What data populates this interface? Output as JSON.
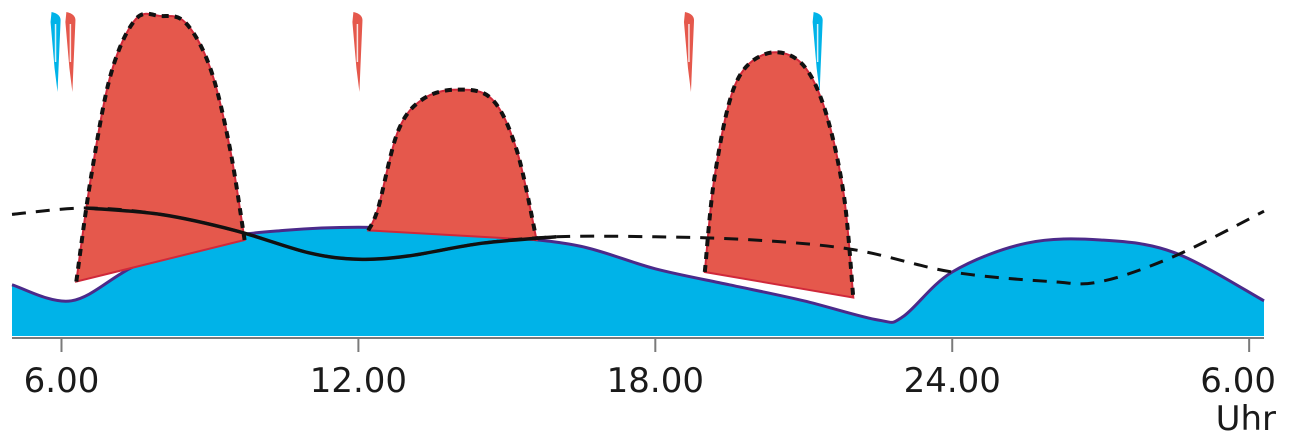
{
  "chart_data": {
    "type": "area",
    "title": "",
    "xlabel": "Uhr",
    "ylabel": "",
    "x_range_hours": [
      5,
      30.3
    ],
    "y_range": [
      0,
      1
    ],
    "grid": false,
    "x_ticks": [
      {
        "hour": 6,
        "label": "6.00"
      },
      {
        "hour": 12,
        "label": "12.00"
      },
      {
        "hour": 18,
        "label": "18.00"
      },
      {
        "hour": 24,
        "label": "24.00"
      },
      {
        "hour": 30,
        "label": "6.00"
      }
    ],
    "series": [
      {
        "kind": "area",
        "color": "#00b3e8",
        "stroke": "#4b2a8a",
        "points": [
          [
            5.0,
            0.16
          ],
          [
            6.2,
            0.11
          ],
          [
            7.5,
            0.22
          ],
          [
            9.0,
            0.3
          ],
          [
            10.5,
            0.33
          ],
          [
            12.0,
            0.34
          ],
          [
            13.5,
            0.33
          ],
          [
            15.0,
            0.31
          ],
          [
            16.5,
            0.28
          ],
          [
            18.0,
            0.21
          ],
          [
            19.5,
            0.16
          ],
          [
            21.0,
            0.11
          ],
          [
            22.5,
            0.05
          ],
          [
            23.0,
            0.06
          ],
          [
            24.0,
            0.2
          ],
          [
            25.5,
            0.29
          ],
          [
            27.0,
            0.3
          ],
          [
            28.5,
            0.26
          ],
          [
            30.3,
            0.11
          ]
        ]
      },
      {
        "kind": "peak",
        "color": "#e5584c",
        "points": [
          [
            6.3,
            0.17
          ],
          [
            6.6,
            0.5
          ],
          [
            7.0,
            0.82
          ],
          [
            7.5,
            0.99
          ],
          [
            8.0,
            1.0
          ],
          [
            8.5,
            0.98
          ],
          [
            9.0,
            0.84
          ],
          [
            9.4,
            0.59
          ],
          [
            9.7,
            0.3
          ]
        ]
      },
      {
        "kind": "peak",
        "color": "#e5584c",
        "points": [
          [
            12.2,
            0.33
          ],
          [
            12.4,
            0.4
          ],
          [
            12.8,
            0.64
          ],
          [
            13.3,
            0.74
          ],
          [
            14.0,
            0.77
          ],
          [
            14.7,
            0.74
          ],
          [
            15.2,
            0.58
          ],
          [
            15.6,
            0.3
          ]
        ]
      },
      {
        "kind": "peak",
        "color": "#e5584c",
        "points": [
          [
            19.0,
            0.2
          ],
          [
            19.2,
            0.5
          ],
          [
            19.6,
            0.78
          ],
          [
            20.2,
            0.88
          ],
          [
            20.9,
            0.86
          ],
          [
            21.4,
            0.72
          ],
          [
            21.8,
            0.45
          ],
          [
            22.0,
            0.12
          ]
        ]
      },
      {
        "kind": "dashed-line",
        "color": "#111111",
        "points": [
          [
            5.0,
            0.38
          ],
          [
            6.5,
            0.4
          ],
          [
            8.0,
            0.38
          ],
          [
            9.5,
            0.33
          ],
          [
            11.0,
            0.26
          ],
          [
            12.0,
            0.24
          ],
          [
            13.0,
            0.25
          ],
          [
            14.5,
            0.29
          ],
          [
            16.0,
            0.31
          ],
          [
            18.0,
            0.31
          ],
          [
            20.0,
            0.3
          ],
          [
            22.0,
            0.27
          ],
          [
            24.0,
            0.2
          ],
          [
            26.0,
            0.17
          ],
          [
            27.0,
            0.17
          ],
          [
            28.5,
            0.25
          ],
          [
            30.3,
            0.39
          ]
        ]
      },
      {
        "kind": "solid-line",
        "color": "#111111",
        "points": [
          [
            6.5,
            0.4
          ],
          [
            8.0,
            0.38
          ],
          [
            9.5,
            0.33
          ],
          [
            11.0,
            0.26
          ],
          [
            12.0,
            0.24
          ],
          [
            13.0,
            0.25
          ],
          [
            14.5,
            0.29
          ],
          [
            16.0,
            0.31
          ]
        ]
      }
    ],
    "markers": [
      {
        "hour": 5.9,
        "color": "#00b3e8"
      },
      {
        "hour": 6.2,
        "color": "#e5584c"
      },
      {
        "hour": 12.0,
        "color": "#e5584c"
      },
      {
        "hour": 18.7,
        "color": "#e5584c"
      },
      {
        "hour": 21.3,
        "color": "#00b3e8"
      }
    ]
  }
}
